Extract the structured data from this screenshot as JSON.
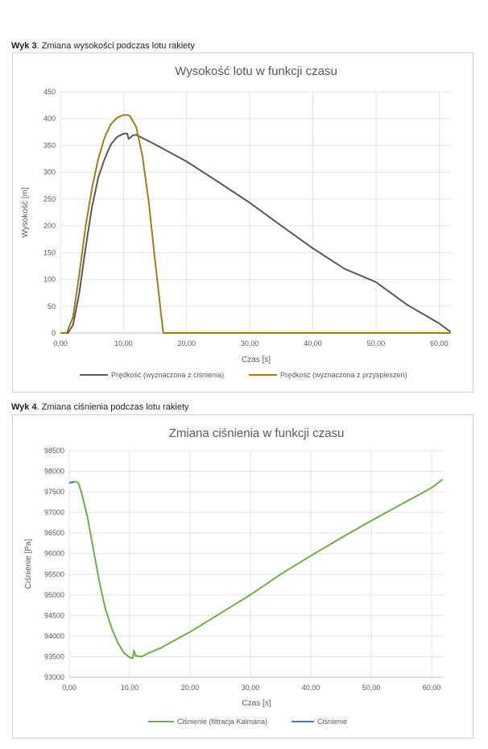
{
  "caption1": {
    "bold": "Wyk 3",
    "rest": ". Zmiana wysokości podczas lotu rakiety"
  },
  "caption2": {
    "bold": "Wyk 4",
    "rest": ". Zmiana ciśnienia podczas lotu rakiety"
  },
  "chart_data": [
    {
      "type": "line",
      "title": "Wysokość lotu w funkcji czasu",
      "xlabel": "Czas [s]",
      "ylabel": "Wysokość [m]",
      "xlim": [
        0,
        62
      ],
      "ylim": [
        0,
        450
      ],
      "xticks": [
        "0,00",
        "10,00",
        "20,00",
        "30,00",
        "40,00",
        "50,00",
        "60,00"
      ],
      "yticks": [
        "0",
        "50",
        "100",
        "150",
        "200",
        "250",
        "300",
        "350",
        "400",
        "450"
      ],
      "grid": true,
      "legend_position": "bottom",
      "series": [
        {
          "name": "Prędkość (wyznaczona z ciśnienia)",
          "color": "#595959",
          "x": [
            0,
            1.2,
            2,
            3,
            4,
            5,
            6,
            7,
            8,
            9,
            10,
            10.6,
            10.8,
            11.5,
            12,
            15,
            20,
            25,
            30,
            35,
            40,
            45,
            50,
            55,
            60,
            61.8
          ],
          "y": [
            0,
            0,
            15,
            75,
            160,
            235,
            290,
            325,
            352,
            366,
            372,
            372,
            362,
            369,
            370,
            352,
            320,
            282,
            243,
            200,
            158,
            120,
            95,
            52,
            18,
            2
          ]
        },
        {
          "name": "Prędkość (wyznaczona z przyspieszeń)",
          "color": "#a07c12",
          "x": [
            0,
            1,
            2,
            3,
            4,
            5,
            6,
            7,
            8,
            9,
            10,
            10.6,
            11,
            12,
            13,
            14,
            15,
            16,
            16.3,
            20,
            30,
            40,
            50,
            61.8
          ],
          "y": [
            0,
            0,
            30,
            110,
            200,
            270,
            325,
            365,
            390,
            402,
            407,
            407,
            405,
            385,
            330,
            245,
            135,
            30,
            0,
            0,
            0,
            0,
            0,
            0
          ]
        }
      ]
    },
    {
      "type": "line",
      "title": "Zmiana ciśnienia w funkcji czasu",
      "xlabel": "Czas [s]",
      "ylabel": "Ciśnienie [Pa]",
      "xlim": [
        0,
        62
      ],
      "ylim": [
        93000,
        98500
      ],
      "xticks": [
        "0,00",
        "10,00",
        "20,00",
        "30,00",
        "40,00",
        "50,00",
        "60,00"
      ],
      "yticks": [
        "93000",
        "93500",
        "94000",
        "94500",
        "95000",
        "95500",
        "96000",
        "96500",
        "97000",
        "97500",
        "98000",
        "98500"
      ],
      "grid": true,
      "legend_position": "bottom",
      "series": [
        {
          "name": "Ciśnienie (filtracja Kalmana)",
          "color": "#70ad47",
          "x": [
            0,
            1,
            1.5,
            2,
            3,
            4,
            5,
            6,
            7,
            8,
            9,
            10,
            10.5,
            10.7,
            11,
            12,
            13,
            15,
            20,
            25,
            30,
            35,
            40,
            45,
            50,
            55,
            60,
            61.8
          ],
          "y": [
            97720,
            97750,
            97720,
            97500,
            96900,
            96100,
            95300,
            94650,
            94200,
            93850,
            93600,
            93480,
            93460,
            93650,
            93520,
            93500,
            93580,
            93700,
            94100,
            94550,
            95000,
            95500,
            95950,
            96380,
            96800,
            97200,
            97600,
            97800
          ]
        },
        {
          "name": "Ciśnienie",
          "color": "#4472c4",
          "x": [
            0,
            0.8
          ],
          "y": [
            97720,
            97740
          ]
        }
      ]
    }
  ]
}
